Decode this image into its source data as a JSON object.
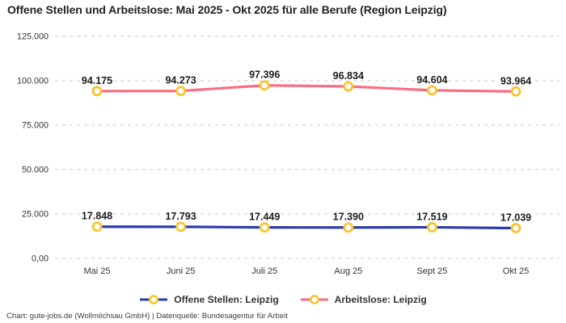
{
  "title": "Offene Stellen und Arbeitslose: Mai 2025 - Okt 2025 für alle Berufe (Region Leipzig)",
  "footer": "Chart: gute-jobs.de (Wollmilchsau GmbH) | Datenquelle: Bundesagentur für Arbeit",
  "colors": {
    "background": "#ffffff",
    "title_text": "#222222",
    "axis_text": "#333333",
    "value_label_text": "#1a1a1a",
    "gridline": "#c9c9c9",
    "offene_stellen_line": "#2a3cae",
    "arbeitslose_line": "#f96e81",
    "marker_stroke": "#fbc32d",
    "marker_fill": "#ffffff"
  },
  "legend": {
    "items": [
      {
        "label": "Offene Stellen: Leipzig",
        "color": "#2a3cae"
      },
      {
        "label": "Arbeitslose: Leipzig",
        "color": "#f96e81"
      }
    ]
  },
  "chart_data": {
    "type": "line",
    "title": "Offene Stellen und Arbeitslose: Mai 2025 - Okt 2025 für alle Berufe (Region Leipzig)",
    "categories": [
      "Mai 25",
      "Juni 25",
      "Juli 25",
      "Aug 25",
      "Sept 25",
      "Okt 25"
    ],
    "series": [
      {
        "name": "Offene Stellen: Leipzig",
        "color": "#2a3cae",
        "values": [
          17848,
          17793,
          17449,
          17390,
          17519,
          17039
        ],
        "labels": [
          "17.848",
          "17.793",
          "17.449",
          "17.390",
          "17.519",
          "17.039"
        ]
      },
      {
        "name": "Arbeitslose: Leipzig",
        "color": "#f96e81",
        "values": [
          94175,
          94273,
          97396,
          96834,
          94604,
          93964
        ],
        "labels": [
          "94.175",
          "94.273",
          "97.396",
          "96.834",
          "94.604",
          "93.964"
        ]
      }
    ],
    "y_axis": {
      "min": 0,
      "max": 125000,
      "grid": "dashed",
      "ticks": [
        {
          "value": 0,
          "label": "0,00"
        },
        {
          "value": 25000,
          "label": "25.000"
        },
        {
          "value": 50000,
          "label": "50.000"
        },
        {
          "value": 75000,
          "label": "75.000"
        },
        {
          "value": 100000,
          "label": "100.000"
        },
        {
          "value": 125000,
          "label": "125.000"
        }
      ]
    },
    "legend_position": "bottom"
  }
}
